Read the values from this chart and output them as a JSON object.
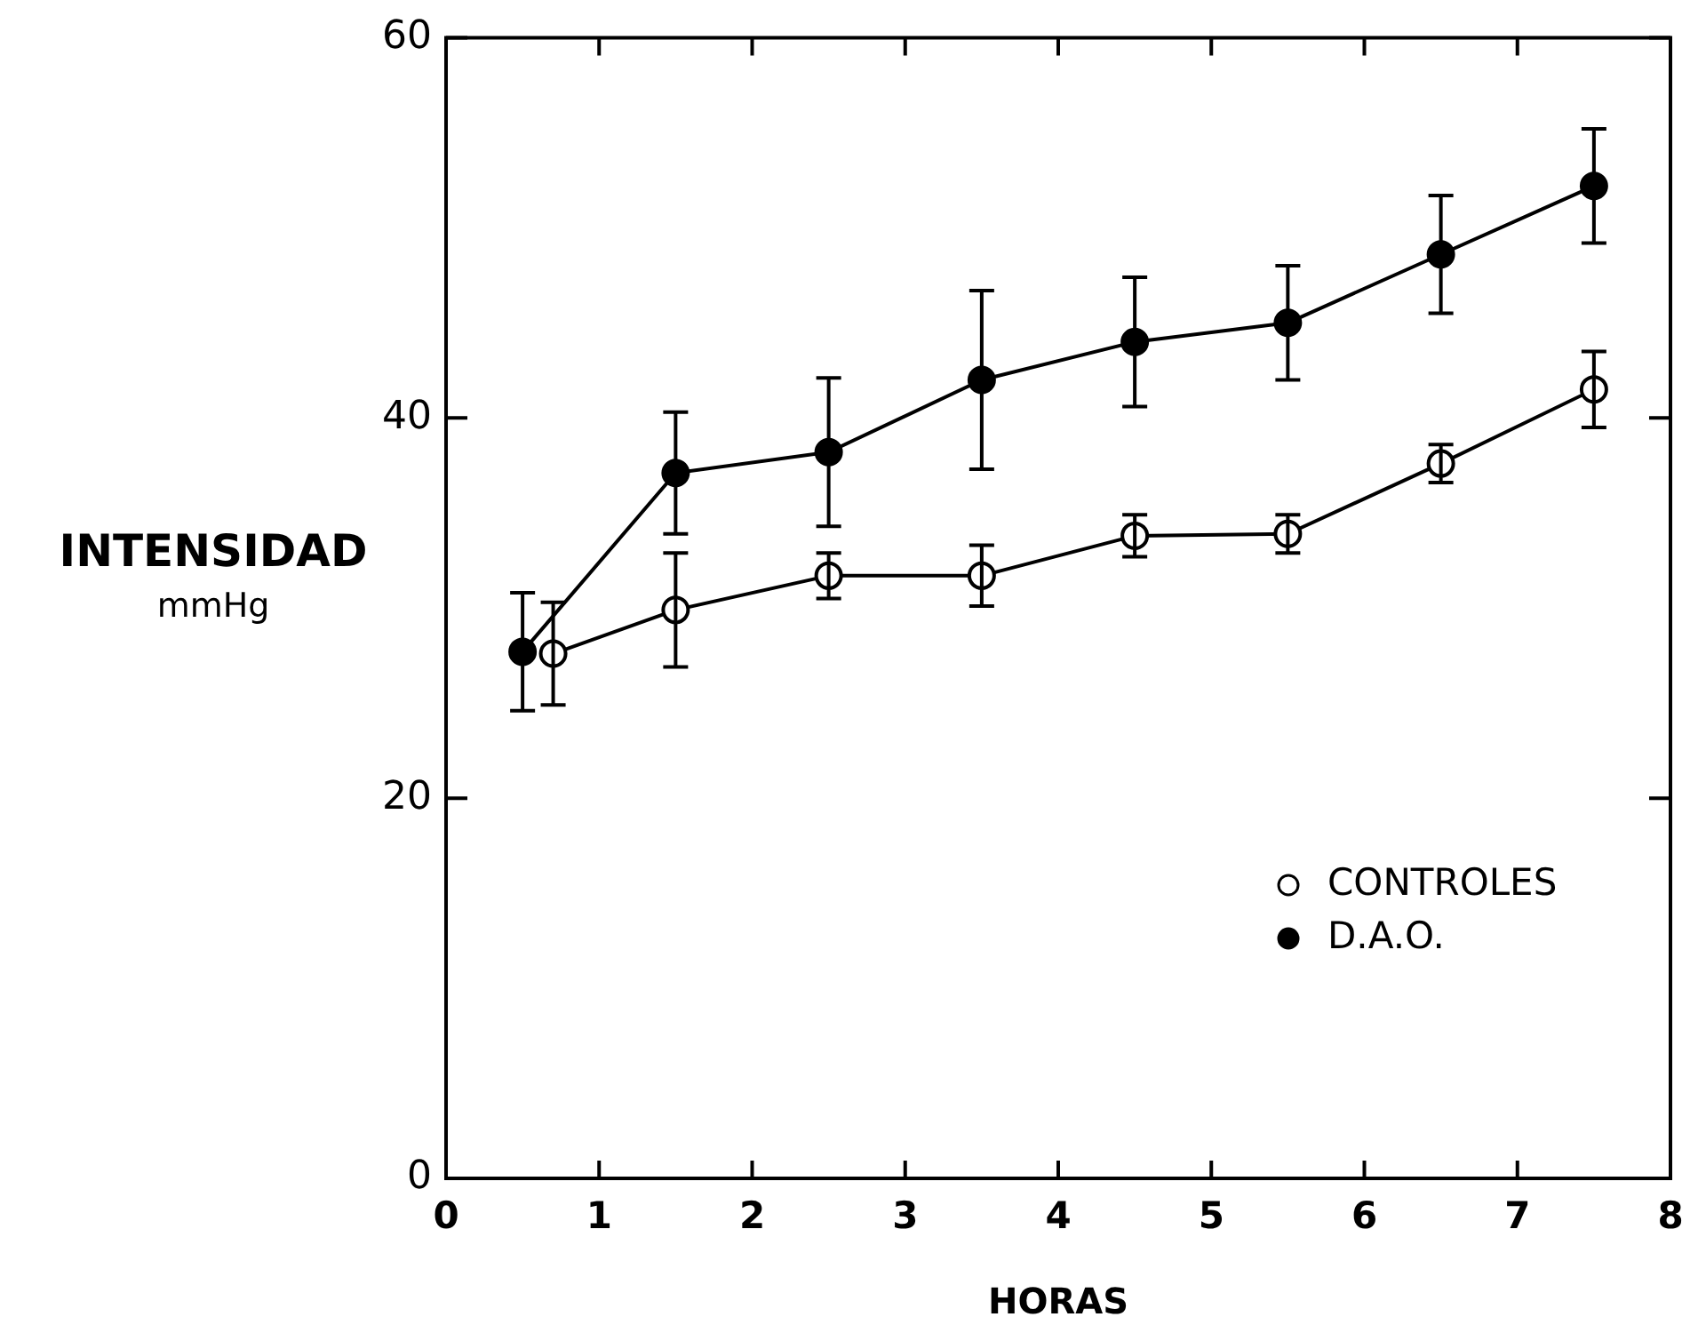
{
  "chart_data": {
    "type": "line",
    "xlabel": "HORAS",
    "ylabel": "INTENSIDAD mmHg",
    "xlim": [
      0,
      8
    ],
    "xticks": [
      0,
      1,
      2,
      3,
      4,
      5,
      6,
      7,
      8
    ],
    "ylim": [
      0,
      60
    ],
    "yticks": [
      0,
      20,
      40,
      60
    ],
    "grid": false,
    "legend": "bottom right",
    "marker": "circle",
    "line_style": "solid",
    "series": [
      {
        "name": "CONTROLES",
        "color": "#000000",
        "x": [
          0.7,
          1.5,
          2.5,
          3.5,
          4.5,
          5.5,
          6.5,
          7.5
        ],
        "values": [
          27.6,
          29.9,
          31.7,
          31.7,
          33.8,
          33.9,
          37.6,
          41.5
        ],
        "errors": [
          2.7,
          3,
          1.2,
          1.6,
          1.1,
          1,
          1,
          2
        ]
      },
      {
        "name": "D.A.O.",
        "color": "#000000",
        "x": [
          0.5,
          1.5,
          2.5,
          3.5,
          4.5,
          5.5,
          6.5,
          7.5
        ],
        "values": [
          27.7,
          37.1,
          38.2,
          42,
          44,
          45,
          48.6,
          52.2
        ],
        "errors": [
          3.1,
          3.2,
          3.9,
          4.7,
          3.4,
          3,
          3.1,
          3
        ]
      }
    ]
  }
}
